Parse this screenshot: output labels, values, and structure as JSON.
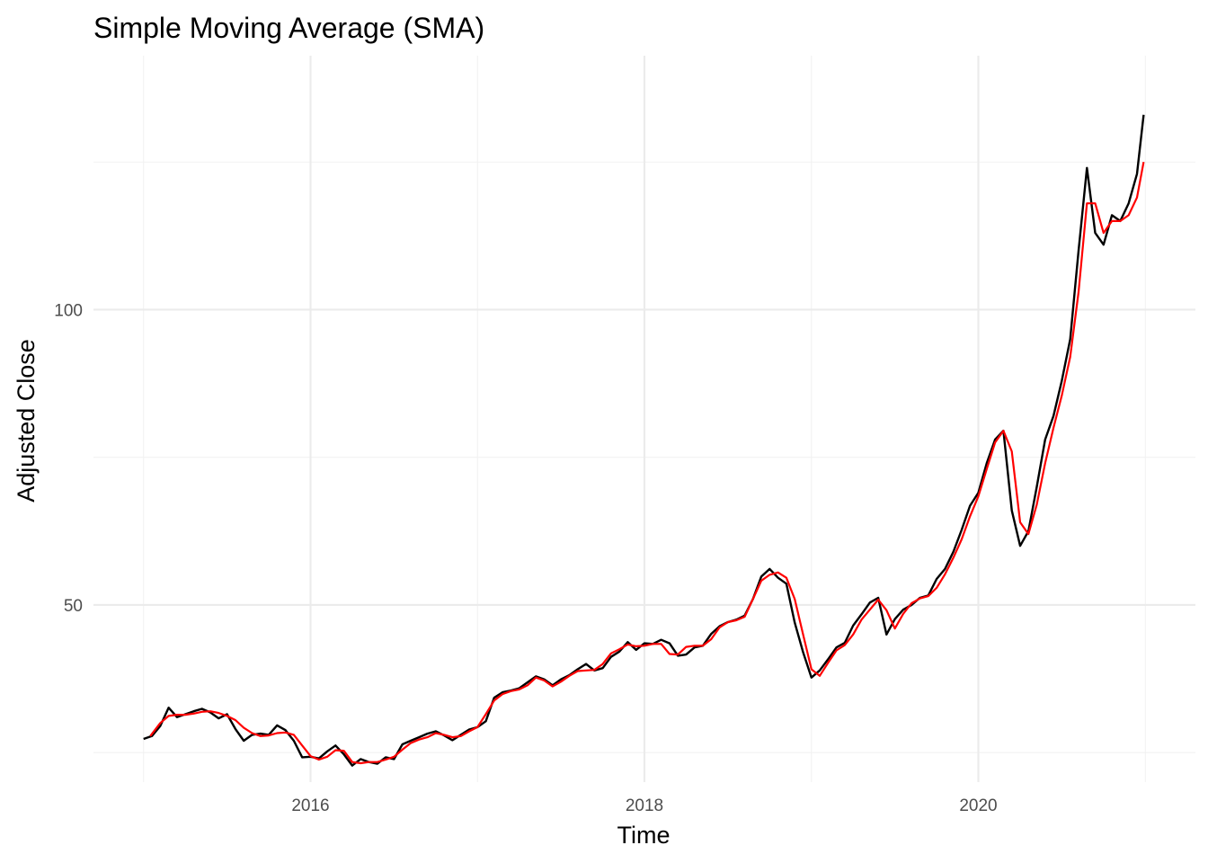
{
  "chart_data": {
    "type": "line",
    "title": "Simple Moving Average (SMA)",
    "xlabel": "Time",
    "ylabel": "Adjusted Close",
    "x_range": [
      2014.7,
      2021.3
    ],
    "x_ticks": [
      2016,
      2018,
      2020
    ],
    "x_tick_labels": [
      "2016",
      "2018",
      "2020"
    ],
    "x_minor_ticks": [
      2015,
      2017,
      2019,
      2021
    ],
    "ylim": [
      20,
      143
    ],
    "y_ticks": [
      50,
      100
    ],
    "y_tick_labels": [
      "50",
      "100"
    ],
    "y_minor_ticks": [
      25,
      75,
      125
    ],
    "grid": true,
    "legend": "none",
    "colors": {
      "price": "#000000",
      "sma": "#ff0000",
      "grid": "#ebebeb"
    },
    "series": [
      {
        "x": [
          2015.0,
          2015.05,
          2015.1,
          2015.15,
          2015.2,
          2015.25,
          2015.3,
          2015.35,
          2015.4,
          2015.45,
          2015.5,
          2015.55,
          2015.6,
          2015.65,
          2015.7,
          2015.75,
          2015.8,
          2015.85,
          2015.9,
          2015.95,
          2016.0,
          2016.05,
          2016.1,
          2016.15,
          2016.2,
          2016.25,
          2016.3,
          2016.35,
          2016.4,
          2016.45,
          2016.5,
          2016.55,
          2016.6,
          2016.65,
          2016.7,
          2016.75,
          2016.8,
          2016.85,
          2016.9,
          2016.95,
          2017.0,
          2017.05,
          2017.1,
          2017.15,
          2017.2,
          2017.25,
          2017.3,
          2017.35,
          2017.4,
          2017.45,
          2017.5,
          2017.55,
          2017.6,
          2017.65,
          2017.7,
          2017.75,
          2017.8,
          2017.85,
          2017.9,
          2017.95,
          2018.0,
          2018.05,
          2018.1,
          2018.15,
          2018.2,
          2018.25,
          2018.3,
          2018.35,
          2018.4,
          2018.45,
          2018.5,
          2018.55,
          2018.6,
          2018.65,
          2018.7,
          2018.75,
          2018.8,
          2018.85,
          2018.9,
          2018.95,
          2019.0,
          2019.05,
          2019.1,
          2019.15,
          2019.2,
          2019.25,
          2019.3,
          2019.35,
          2019.4,
          2019.45,
          2019.5,
          2019.55,
          2019.6,
          2019.65,
          2019.7,
          2019.75,
          2019.8,
          2019.85,
          2019.9,
          2019.95,
          2020.0,
          2020.05,
          2020.1,
          2020.15,
          2020.2,
          2020.25,
          2020.3,
          2020.35,
          2020.4,
          2020.45,
          2020.5,
          2020.55,
          2020.6,
          2020.65,
          2020.7,
          2020.75,
          2020.8,
          2020.85,
          2020.9,
          2020.95,
          2020.99
        ],
        "values": [
          27.3,
          27.8,
          29.5,
          32.6,
          31.0,
          31.5,
          32.0,
          32.4,
          31.8,
          30.8,
          31.5,
          29.0,
          27.0,
          28.0,
          28.2,
          28.0,
          29.6,
          28.8,
          27.0,
          24.2,
          24.3,
          24.0,
          25.2,
          26.2,
          24.7,
          22.8,
          23.9,
          23.4,
          23.1,
          24.2,
          23.9,
          26.4,
          27.0,
          27.6,
          28.2,
          28.6,
          27.9,
          27.1,
          28.0,
          28.9,
          29.3,
          30.3,
          34.3,
          35.2,
          35.5,
          35.9,
          36.9,
          37.9,
          37.4,
          36.4,
          37.4,
          38.1,
          39.1,
          40.0,
          38.9,
          39.3,
          41.2,
          42.1,
          43.7,
          42.4,
          43.5,
          43.4,
          44.1,
          43.5,
          41.4,
          41.6,
          42.8,
          43.1,
          45.1,
          46.4,
          47.1,
          47.5,
          48.2,
          51.0,
          54.8,
          56.1,
          54.6,
          53.6,
          47.0,
          42.0,
          37.7,
          38.9,
          40.8,
          42.8,
          43.6,
          46.5,
          48.4,
          50.4,
          51.2,
          45.0,
          47.6,
          49.2,
          50.0,
          51.2,
          51.6,
          54.4,
          56.1,
          59.0,
          62.7,
          66.8,
          69.0,
          74.0,
          78.0,
          79.5,
          66.0,
          60.0,
          62.5,
          70.0,
          78.0,
          82.0,
          88.0,
          95.0,
          110.0,
          124.0,
          113.0,
          111.0,
          116.0,
          115.0,
          118.0,
          123.0,
          133.0
        ],
        "color": "#000000"
      },
      {
        "x": [
          2015.04,
          2015.1,
          2015.15,
          2015.2,
          2015.25,
          2015.3,
          2015.35,
          2015.4,
          2015.45,
          2015.5,
          2015.55,
          2015.6,
          2015.65,
          2015.7,
          2015.75,
          2015.8,
          2015.85,
          2015.9,
          2015.95,
          2016.0,
          2016.05,
          2016.1,
          2016.15,
          2016.2,
          2016.25,
          2016.3,
          2016.35,
          2016.4,
          2016.45,
          2016.5,
          2016.55,
          2016.6,
          2016.65,
          2016.7,
          2016.75,
          2016.8,
          2016.85,
          2016.9,
          2016.95,
          2017.0,
          2017.05,
          2017.1,
          2017.15,
          2017.2,
          2017.25,
          2017.3,
          2017.35,
          2017.4,
          2017.45,
          2017.5,
          2017.55,
          2017.6,
          2017.65,
          2017.7,
          2017.75,
          2017.8,
          2017.85,
          2017.9,
          2017.95,
          2018.0,
          2018.05,
          2018.1,
          2018.15,
          2018.2,
          2018.25,
          2018.3,
          2018.35,
          2018.4,
          2018.45,
          2018.5,
          2018.55,
          2018.6,
          2018.65,
          2018.7,
          2018.75,
          2018.8,
          2018.85,
          2018.9,
          2018.95,
          2019.0,
          2019.05,
          2019.1,
          2019.15,
          2019.2,
          2019.25,
          2019.3,
          2019.35,
          2019.4,
          2019.45,
          2019.5,
          2019.55,
          2019.6,
          2019.65,
          2019.7,
          2019.75,
          2019.8,
          2019.85,
          2019.9,
          2019.95,
          2020.0,
          2020.05,
          2020.1,
          2020.15,
          2020.2,
          2020.25,
          2020.3,
          2020.35,
          2020.4,
          2020.45,
          2020.5,
          2020.55,
          2020.6,
          2020.65,
          2020.7,
          2020.75,
          2020.8,
          2020.85,
          2020.9,
          2020.95,
          2020.99
        ],
        "values": [
          27.8,
          30.0,
          31.2,
          31.4,
          31.4,
          31.6,
          31.9,
          32.0,
          31.7,
          31.2,
          30.5,
          29.2,
          28.3,
          27.8,
          27.9,
          28.3,
          28.4,
          28.0,
          26.2,
          24.4,
          23.8,
          24.3,
          25.4,
          25.3,
          23.4,
          23.2,
          23.4,
          23.4,
          23.8,
          24.3,
          25.5,
          26.6,
          27.2,
          27.6,
          28.3,
          28.0,
          27.6,
          27.8,
          28.6,
          29.3,
          31.5,
          33.8,
          34.9,
          35.4,
          35.7,
          36.4,
          37.7,
          37.2,
          36.2,
          37.0,
          38.0,
          38.8,
          38.9,
          39.0,
          40.0,
          41.8,
          42.5,
          43.3,
          43.0,
          43.1,
          43.4,
          43.4,
          41.7,
          41.6,
          42.9,
          43.1,
          43.1,
          44.2,
          46.2,
          47.1,
          47.4,
          48.0,
          51.0,
          54.1,
          55.1,
          55.5,
          54.6,
          51.0,
          45.0,
          39.1,
          38.0,
          40.2,
          42.3,
          43.2,
          45.0,
          47.5,
          49.2,
          50.9,
          49.1,
          46.0,
          48.5,
          50.3,
          51.1,
          51.5,
          52.9,
          55.2,
          58.0,
          61.1,
          65.0,
          68.4,
          73.0,
          77.5,
          79.5,
          76.0,
          64.0,
          62.0,
          67.0,
          74.0,
          80.0,
          85.5,
          92.0,
          103.0,
          118.0,
          118.0,
          113.0,
          115.0,
          115.0,
          116.0,
          119.0,
          125.0
        ],
        "color": "#ff0000"
      }
    ]
  }
}
